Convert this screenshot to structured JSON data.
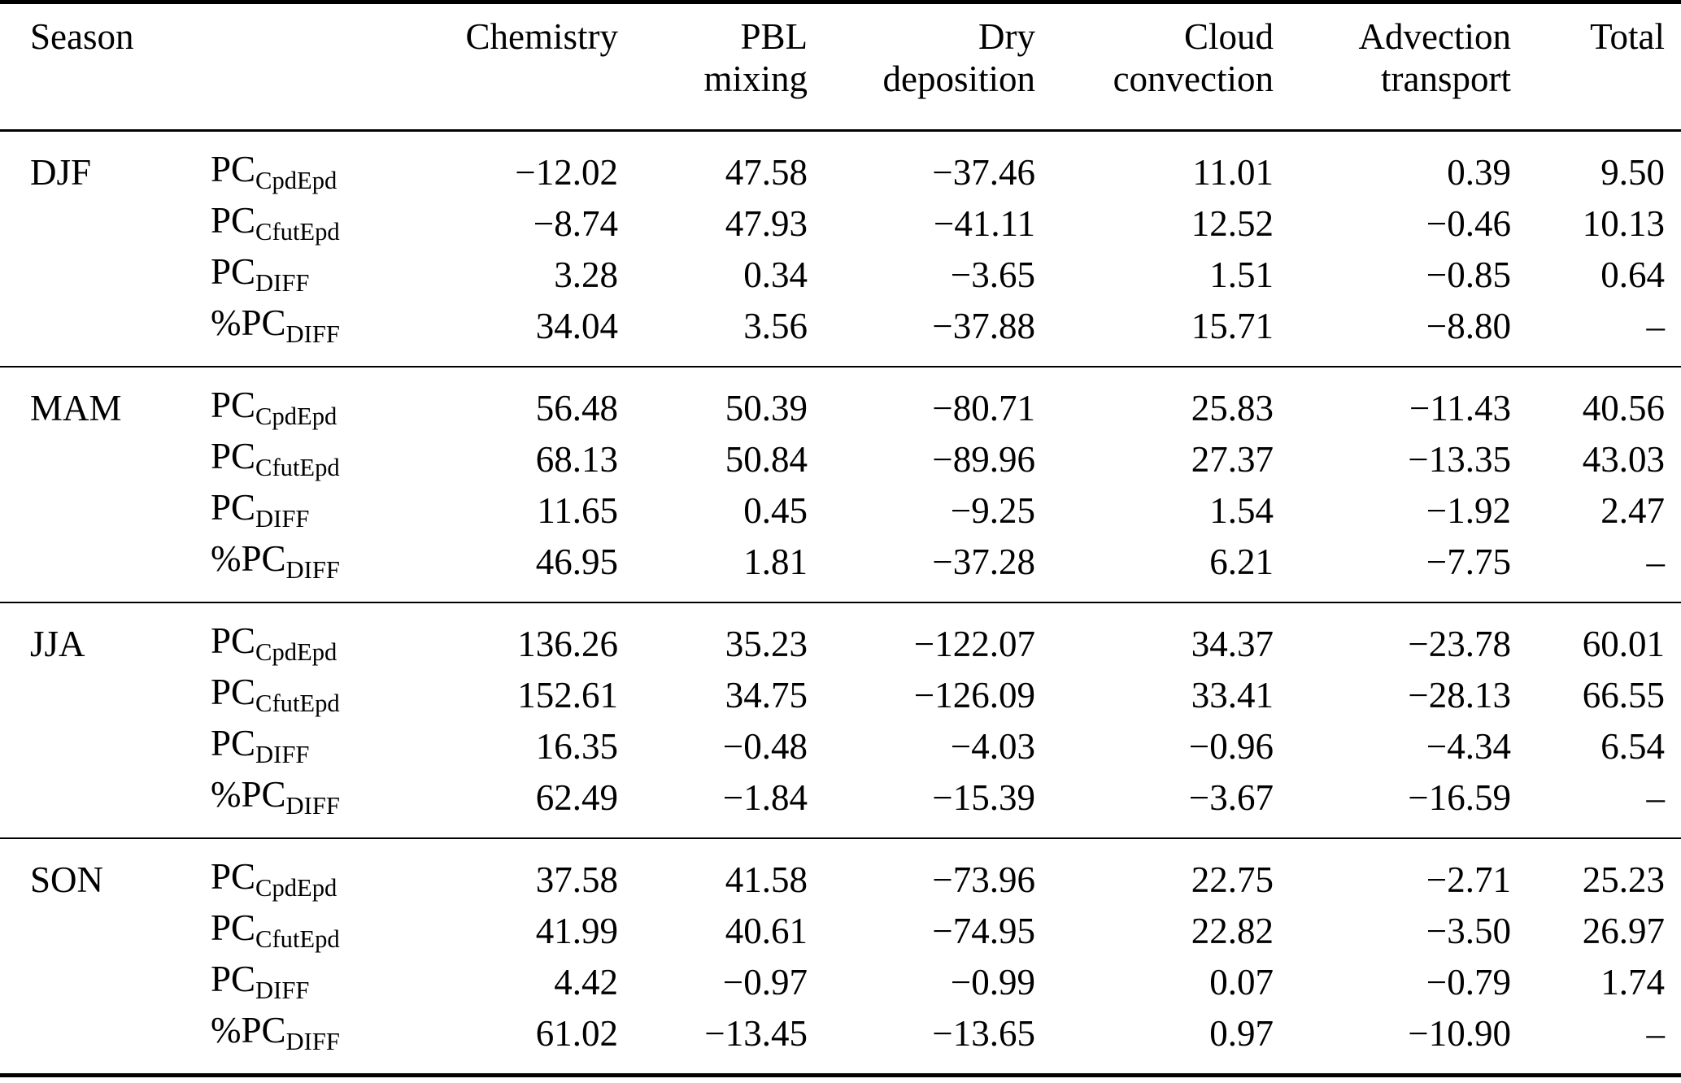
{
  "header": {
    "season": "Season",
    "columns": [
      {
        "line1": "Chemistry",
        "line2": ""
      },
      {
        "line1": "PBL",
        "line2": "mixing"
      },
      {
        "line1": "Dry",
        "line2": "deposition"
      },
      {
        "line1": "Cloud",
        "line2": "convection"
      },
      {
        "line1": "Advection",
        "line2": "transport"
      },
      {
        "line1": "Total",
        "line2": ""
      }
    ]
  },
  "text_color": "#000000",
  "background_color": "#ffffff",
  "groups": [
    {
      "season": "DJF",
      "rows": [
        {
          "label": {
            "prefix": "PC",
            "subscript": "CpdEpd"
          },
          "values": [
            "−12.02",
            "47.58",
            "−37.46",
            "11.01",
            "0.39",
            "9.50"
          ]
        },
        {
          "label": {
            "prefix": "PC",
            "subscript": "CfutEpd"
          },
          "values": [
            "−8.74",
            "47.93",
            "−41.11",
            "12.52",
            "−0.46",
            "10.13"
          ]
        },
        {
          "label": {
            "prefix": "PC",
            "subscript": "DIFF"
          },
          "values": [
            "3.28",
            "0.34",
            "−3.65",
            "1.51",
            "−0.85",
            "0.64"
          ]
        },
        {
          "label": {
            "prefix": "%PC",
            "subscript": "DIFF"
          },
          "values": [
            "34.04",
            "3.56",
            "−37.88",
            "15.71",
            "−8.80",
            "–"
          ]
        }
      ]
    },
    {
      "season": "MAM",
      "rows": [
        {
          "label": {
            "prefix": "PC",
            "subscript": "CpdEpd"
          },
          "values": [
            "56.48",
            "50.39",
            "−80.71",
            "25.83",
            "−11.43",
            "40.56"
          ]
        },
        {
          "label": {
            "prefix": "PC",
            "subscript": "CfutEpd"
          },
          "values": [
            "68.13",
            "50.84",
            "−89.96",
            "27.37",
            "−13.35",
            "43.03"
          ]
        },
        {
          "label": {
            "prefix": "PC",
            "subscript": "DIFF"
          },
          "values": [
            "11.65",
            "0.45",
            "−9.25",
            "1.54",
            "−1.92",
            "2.47"
          ]
        },
        {
          "label": {
            "prefix": "%PC",
            "subscript": "DIFF"
          },
          "values": [
            "46.95",
            "1.81",
            "−37.28",
            "6.21",
            "−7.75",
            "–"
          ]
        }
      ]
    },
    {
      "season": "JJA",
      "rows": [
        {
          "label": {
            "prefix": "PC",
            "subscript": "CpdEpd"
          },
          "values": [
            "136.26",
            "35.23",
            "−122.07",
            "34.37",
            "−23.78",
            "60.01"
          ]
        },
        {
          "label": {
            "prefix": "PC",
            "subscript": "CfutEpd"
          },
          "values": [
            "152.61",
            "34.75",
            "−126.09",
            "33.41",
            "−28.13",
            "66.55"
          ]
        },
        {
          "label": {
            "prefix": "PC",
            "subscript": "DIFF"
          },
          "values": [
            "16.35",
            "−0.48",
            "−4.03",
            "−0.96",
            "−4.34",
            "6.54"
          ]
        },
        {
          "label": {
            "prefix": "%PC",
            "subscript": "DIFF"
          },
          "values": [
            "62.49",
            "−1.84",
            "−15.39",
            "−3.67",
            "−16.59",
            "–"
          ]
        }
      ]
    },
    {
      "season": "SON",
      "rows": [
        {
          "label": {
            "prefix": "PC",
            "subscript": "CpdEpd"
          },
          "values": [
            "37.58",
            "41.58",
            "−73.96",
            "22.75",
            "−2.71",
            "25.23"
          ]
        },
        {
          "label": {
            "prefix": "PC",
            "subscript": "CfutEpd"
          },
          "values": [
            "41.99",
            "40.61",
            "−74.95",
            "22.82",
            "−3.50",
            "26.97"
          ]
        },
        {
          "label": {
            "prefix": "PC",
            "subscript": "DIFF"
          },
          "values": [
            "4.42",
            "−0.97",
            "−0.99",
            "0.07",
            "−0.79",
            "1.74"
          ]
        },
        {
          "label": {
            "prefix": "%PC",
            "subscript": "DIFF"
          },
          "values": [
            "61.02",
            "−13.45",
            "−13.65",
            "0.97",
            "−10.90",
            "–"
          ]
        }
      ]
    }
  ]
}
